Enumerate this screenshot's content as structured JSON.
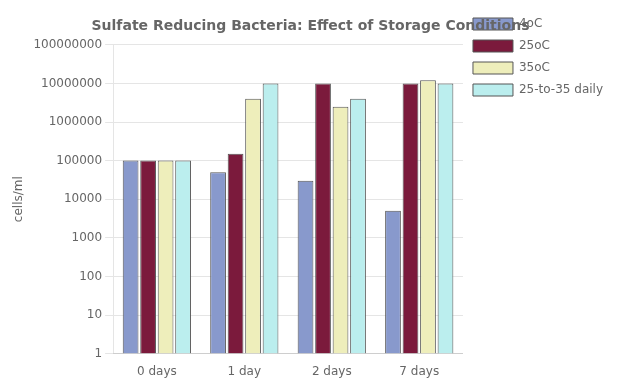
{
  "chart_data": {
    "type": "bar",
    "title": "Sulfate Reducing Bacteria: Effect of Storage Conditions",
    "y_label": "cells/ml",
    "categories": [
      "0 days",
      "1 day",
      "2 days",
      "7 days"
    ],
    "series": [
      {
        "name": "4oC",
        "color": "#8899CC",
        "values": [
          100000,
          50000,
          30000,
          5000
        ]
      },
      {
        "name": "25oC",
        "color": "#7B1A3C",
        "values": [
          100000,
          150000,
          10000000,
          10000000
        ]
      },
      {
        "name": "35oC",
        "color": "#EEEEBB",
        "values": [
          100000,
          4000000,
          2500000,
          12000000
        ]
      },
      {
        "name": "25-to-35 daily",
        "color": "#BBEEEE",
        "values": [
          100000,
          10000000,
          4000000,
          10000000
        ]
      }
    ],
    "log": "y",
    "ylim": [
      1,
      100000000
    ],
    "yticks": [
      1,
      10,
      100,
      1000,
      10000,
      100000,
      1000000,
      10000000,
      100000000
    ],
    "grid": true,
    "legend": "right"
  }
}
